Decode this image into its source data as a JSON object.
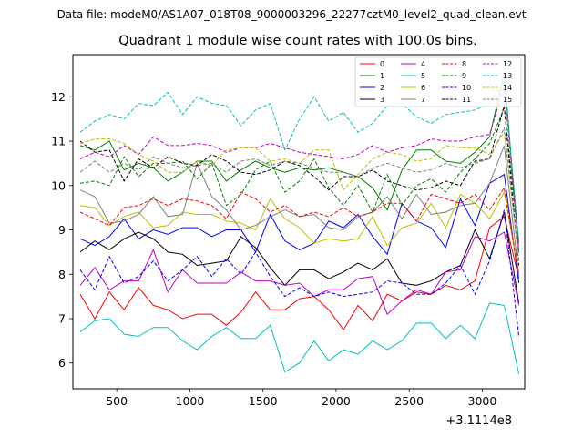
{
  "chart_data": {
    "type": "line",
    "suptitle": "Data file: modeM0/AS1A07_018T08_9000003296_22277cztM0_level2_quad_clean.evt",
    "title": "Quadrant 1 module wise count rates with 100.0s bins.",
    "xlabel": "",
    "ylabel": "",
    "x_offset_label": "+3.1114e8",
    "xlim": [
      200,
      3290
    ],
    "ylim": [
      5.42,
      12.95
    ],
    "xticks": [
      500,
      1000,
      1500,
      2000,
      2500,
      3000
    ],
    "yticks": [
      6,
      7,
      8,
      9,
      10,
      11,
      12
    ],
    "x": [
      250,
      350,
      450,
      550,
      650,
      750,
      850,
      950,
      1050,
      1150,
      1250,
      1350,
      1450,
      1550,
      1650,
      1750,
      1850,
      1950,
      2050,
      2150,
      2250,
      2350,
      2450,
      2550,
      2650,
      2750,
      2850,
      2950,
      3050,
      3150,
      3250
    ],
    "legend_loc": "upper right",
    "series": [
      {
        "name": "0",
        "color": "#ff0000",
        "dash": "solid",
        "values": [
          7.55,
          7.0,
          7.6,
          7.2,
          7.7,
          7.3,
          7.2,
          7.0,
          7.1,
          7.1,
          6.85,
          7.15,
          7.6,
          7.2,
          7.2,
          7.45,
          7.5,
          7.2,
          6.75,
          7.3,
          6.95,
          7.55,
          7.4,
          7.6,
          7.55,
          7.75,
          7.65,
          7.85,
          9.05,
          9.3,
          7.9
        ]
      },
      {
        "name": "1",
        "color": "#008000",
        "dash": "solid",
        "values": [
          10.9,
          10.8,
          11.0,
          10.35,
          10.5,
          10.4,
          10.1,
          10.3,
          10.55,
          10.55,
          10.1,
          10.35,
          10.55,
          10.4,
          10.3,
          10.4,
          10.35,
          10.4,
          10.3,
          10.2,
          9.95,
          9.45,
          10.35,
          10.8,
          10.8,
          10.55,
          10.5,
          10.75,
          11.1,
          12.55,
          8.5
        ]
      },
      {
        "name": "2",
        "color": "#0000ff",
        "dash": "solid",
        "values": [
          8.8,
          8.65,
          8.85,
          9.25,
          8.8,
          9.0,
          8.9,
          9.05,
          9.05,
          8.85,
          9.0,
          9.0,
          8.5,
          9.35,
          8.75,
          8.55,
          8.7,
          9.2,
          9.05,
          9.35,
          8.85,
          8.45,
          9.6,
          9.2,
          9.05,
          8.6,
          9.7,
          9.1,
          10.05,
          10.25,
          7.8
        ]
      },
      {
        "name": "3",
        "color": "#000000",
        "dash": "solid",
        "values": [
          8.5,
          8.75,
          8.55,
          8.8,
          8.95,
          8.8,
          8.5,
          8.45,
          8.2,
          8.25,
          8.3,
          8.85,
          8.6,
          8.15,
          7.75,
          8.1,
          8.1,
          7.9,
          8.05,
          8.25,
          8.1,
          8.35,
          7.8,
          7.75,
          7.85,
          8.05,
          8.2,
          9.0,
          8.35,
          9.4,
          7.35
        ]
      },
      {
        "name": "4",
        "color": "#bf00bf",
        "dash": "solid",
        "values": [
          7.75,
          8.15,
          7.65,
          7.85,
          7.85,
          8.55,
          7.6,
          8.1,
          7.8,
          7.8,
          7.8,
          8.05,
          7.85,
          7.85,
          7.75,
          7.8,
          7.5,
          7.65,
          7.65,
          7.9,
          7.95,
          7.1,
          7.4,
          7.65,
          7.55,
          8.05,
          8.1,
          8.85,
          8.75,
          8.95,
          7.3
        ]
      },
      {
        "name": "5",
        "color": "#00bfbf",
        "dash": "solid",
        "values": [
          6.7,
          6.95,
          7.0,
          6.65,
          6.6,
          6.8,
          6.8,
          6.5,
          6.3,
          6.6,
          6.8,
          6.55,
          6.55,
          6.85,
          5.8,
          6.0,
          6.5,
          6.05,
          6.3,
          6.2,
          6.5,
          6.3,
          6.5,
          6.9,
          6.9,
          6.55,
          6.85,
          6.55,
          7.35,
          7.3,
          5.75
        ]
      },
      {
        "name": "6",
        "color": "#bfbf00",
        "dash": "solid",
        "values": [
          9.55,
          9.5,
          9.1,
          9.3,
          9.4,
          9.05,
          9.1,
          9.4,
          9.35,
          9.35,
          9.2,
          9.15,
          9.0,
          9.7,
          9.25,
          9.05,
          8.7,
          8.8,
          8.75,
          8.8,
          9.3,
          8.65,
          9.05,
          9.15,
          9.6,
          9.05,
          9.8,
          9.6,
          9.25,
          9.85,
          8.0
        ]
      },
      {
        "name": "7",
        "color": "#808080",
        "dash": "solid",
        "values": [
          9.9,
          9.75,
          9.15,
          9.2,
          9.35,
          9.75,
          9.3,
          9.35,
          10.5,
          9.75,
          9.45,
          9.0,
          9.1,
          9.3,
          9.45,
          9.3,
          9.35,
          9.05,
          9.0,
          9.3,
          9.4,
          9.75,
          9.25,
          9.8,
          9.35,
          9.4,
          9.55,
          9.6,
          10.05,
          10.9,
          7.95
        ]
      },
      {
        "name": "8",
        "color": "#ff0000",
        "dash": "dashed",
        "values": [
          9.4,
          9.25,
          9.1,
          9.5,
          9.55,
          9.7,
          9.55,
          9.7,
          9.65,
          9.55,
          9.25,
          9.85,
          9.7,
          9.4,
          9.55,
          9.3,
          9.4,
          9.3,
          9.5,
          9.3,
          9.4,
          9.6,
          9.6,
          9.2,
          9.8,
          9.7,
          9.6,
          9.8,
          9.45,
          9.95,
          8.0
        ]
      },
      {
        "name": "9",
        "color": "#008000",
        "dash": "dashed",
        "values": [
          10.05,
          10.1,
          10.0,
          10.65,
          10.2,
          10.5,
          10.5,
          10.55,
          10.15,
          10.5,
          9.55,
          9.8,
          10.35,
          10.55,
          9.85,
          10.1,
          10.6,
          9.95,
          9.55,
          10.0,
          9.4,
          10.25,
          9.55,
          10.0,
          10.15,
          9.85,
          10.3,
          10.6,
          10.95,
          11.75,
          8.7
        ]
      },
      {
        "name": "10",
        "color": "#0000ff",
        "dash": "dashed",
        "values": [
          8.1,
          7.65,
          8.4,
          7.8,
          7.95,
          8.3,
          7.85,
          8.1,
          8.4,
          7.95,
          8.35,
          8.0,
          8.5,
          7.95,
          7.5,
          7.7,
          7.5,
          7.6,
          7.5,
          7.55,
          7.6,
          7.85,
          7.8,
          7.55,
          7.55,
          7.8,
          8.2,
          7.55,
          8.3,
          9.45,
          6.6
        ]
      },
      {
        "name": "11",
        "color": "#000000",
        "dash": "dashed",
        "values": [
          11.0,
          10.75,
          10.8,
          10.1,
          10.6,
          10.4,
          10.65,
          10.5,
          10.45,
          10.7,
          10.55,
          10.3,
          10.25,
          10.35,
          10.55,
          10.45,
          10.2,
          9.9,
          10.2,
          10.2,
          10.35,
          10.1,
          10.0,
          9.9,
          9.95,
          10.1,
          10.0,
          10.55,
          10.6,
          11.8,
          8.2
        ]
      },
      {
        "name": "12",
        "color": "#bf00bf",
        "dash": "dashed",
        "values": [
          10.6,
          10.75,
          10.65,
          10.9,
          10.7,
          11.1,
          10.9,
          10.9,
          10.95,
          10.9,
          10.75,
          10.85,
          10.85,
          10.95,
          10.85,
          10.75,
          10.7,
          10.65,
          10.6,
          10.7,
          10.9,
          10.75,
          10.85,
          10.9,
          11.05,
          11.0,
          11.0,
          11.1,
          11.15,
          12.25,
          8.5
        ]
      },
      {
        "name": "13",
        "color": "#00bfbf",
        "dash": "dashed",
        "values": [
          11.2,
          11.45,
          11.6,
          11.5,
          11.85,
          11.8,
          12.1,
          11.6,
          12.0,
          11.85,
          11.8,
          11.35,
          11.7,
          11.85,
          10.8,
          11.5,
          12.0,
          11.45,
          11.65,
          11.2,
          11.4,
          11.8,
          11.85,
          11.55,
          11.4,
          11.6,
          11.65,
          11.7,
          11.85,
          12.35,
          8.75
        ]
      },
      {
        "name": "14",
        "color": "#bfbf00",
        "dash": "dashed",
        "values": [
          10.95,
          11.05,
          11.05,
          10.95,
          10.7,
          10.55,
          10.3,
          10.3,
          10.55,
          10.45,
          10.8,
          10.85,
          10.85,
          10.55,
          10.6,
          10.5,
          10.8,
          10.8,
          9.9,
          10.25,
          10.6,
          10.75,
          10.7,
          10.55,
          10.6,
          10.9,
          10.85,
          10.85,
          10.7,
          11.2,
          8.3
        ]
      },
      {
        "name": "15",
        "color": "#808080",
        "dash": "dashed",
        "values": [
          10.3,
          10.55,
          10.3,
          10.5,
          10.35,
          10.65,
          10.5,
          10.4,
          10.45,
          10.5,
          10.3,
          10.55,
          10.6,
          10.45,
          10.55,
          10.5,
          10.4,
          10.3,
          10.3,
          10.2,
          10.4,
          10.5,
          10.4,
          10.3,
          10.35,
          10.5,
          10.4,
          10.5,
          10.6,
          11.3,
          8.3
        ]
      }
    ]
  }
}
